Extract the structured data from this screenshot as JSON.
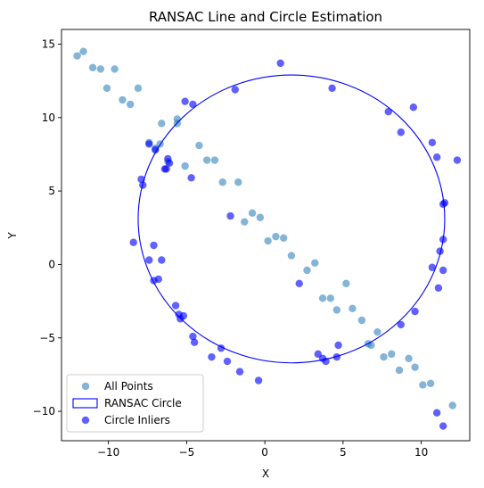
{
  "chart_data": {
    "type": "scatter",
    "title": "RANSAC Line and Circle Estimation",
    "xlabel": "X",
    "ylabel": "Y",
    "xlim": [
      -13.0,
      13.1
    ],
    "ylim": [
      -12.0,
      16.0
    ],
    "xticks": [
      -10,
      -5,
      0,
      5,
      10
    ],
    "yticks": [
      -10,
      -5,
      0,
      5,
      10,
      15
    ],
    "grid": false,
    "legend": {
      "position": "lower-left",
      "entries": [
        "All Points",
        "RANSAC Circle",
        "Circle Inliers"
      ]
    },
    "colors": {
      "all_points": "#1f77b4",
      "circle": "#0000ff",
      "inliers": "#0000ff"
    },
    "circle": {
      "center": [
        1.7,
        3.1
      ],
      "radius": 9.8
    },
    "series": [
      {
        "name": "All Points",
        "points": [
          [
            -12.0,
            14.2
          ],
          [
            -11.6,
            14.5
          ],
          [
            -11.0,
            13.4
          ],
          [
            -10.5,
            13.3
          ],
          [
            -9.6,
            13.3
          ],
          [
            -10.1,
            12.0
          ],
          [
            -9.1,
            11.2
          ],
          [
            -8.6,
            10.9
          ],
          [
            -8.1,
            12.0
          ],
          [
            -6.6,
            9.6
          ],
          [
            -5.6,
            9.6
          ],
          [
            -5.6,
            9.9
          ],
          [
            -6.7,
            8.2
          ],
          [
            -7.4,
            8.3
          ],
          [
            -7.0,
            7.9
          ],
          [
            -6.2,
            7.0
          ],
          [
            -5.1,
            6.7
          ],
          [
            -4.2,
            8.1
          ],
          [
            -3.7,
            7.1
          ],
          [
            -3.2,
            7.1
          ],
          [
            -2.7,
            5.6
          ],
          [
            -1.7,
            5.6
          ],
          [
            -1.3,
            2.9
          ],
          [
            -0.8,
            3.5
          ],
          [
            -0.3,
            3.2
          ],
          [
            0.2,
            1.6
          ],
          [
            0.7,
            1.9
          ],
          [
            1.2,
            1.8
          ],
          [
            1.7,
            0.6
          ],
          [
            2.7,
            -0.4
          ],
          [
            3.2,
            0.1
          ],
          [
            3.7,
            -2.3
          ],
          [
            4.2,
            -2.3
          ],
          [
            4.6,
            -3.1
          ],
          [
            5.2,
            -1.3
          ],
          [
            5.6,
            -3.0
          ],
          [
            6.2,
            -3.8
          ],
          [
            6.6,
            -5.4
          ],
          [
            6.8,
            -5.5
          ],
          [
            7.2,
            -4.6
          ],
          [
            7.6,
            -6.3
          ],
          [
            8.1,
            -6.1
          ],
          [
            8.6,
            -7.2
          ],
          [
            9.2,
            -6.4
          ],
          [
            9.6,
            -7.0
          ],
          [
            10.1,
            -8.2
          ],
          [
            10.6,
            -8.1
          ],
          [
            12.0,
            -9.6
          ]
        ]
      },
      {
        "name": "Circle Inliers",
        "points": [
          [
            1.0,
            13.7
          ],
          [
            4.3,
            12.0
          ],
          [
            -1.9,
            11.9
          ],
          [
            -5.1,
            11.1
          ],
          [
            -4.6,
            10.9
          ],
          [
            7.9,
            10.4
          ],
          [
            9.5,
            10.7
          ],
          [
            8.7,
            9.0
          ],
          [
            -7.4,
            8.2
          ],
          [
            -7.0,
            7.8
          ],
          [
            10.7,
            8.3
          ],
          [
            11.0,
            7.3
          ],
          [
            12.3,
            7.1
          ],
          [
            -6.2,
            7.2
          ],
          [
            -6.1,
            6.9
          ],
          [
            -6.4,
            6.5
          ],
          [
            -6.3,
            6.5
          ],
          [
            -4.7,
            5.9
          ],
          [
            -7.9,
            5.8
          ],
          [
            -7.8,
            5.4
          ],
          [
            11.4,
            4.1
          ],
          [
            11.5,
            4.2
          ],
          [
            -2.2,
            3.3
          ],
          [
            11.4,
            1.7
          ],
          [
            -8.4,
            1.5
          ],
          [
            -7.1,
            1.3
          ],
          [
            11.2,
            0.9
          ],
          [
            -7.4,
            0.3
          ],
          [
            -6.6,
            0.3
          ],
          [
            10.7,
            -0.2
          ],
          [
            11.4,
            -0.4
          ],
          [
            -6.8,
            -1.0
          ],
          [
            -7.1,
            -1.1
          ],
          [
            2.2,
            -1.3
          ],
          [
            11.1,
            -1.6
          ],
          [
            -5.7,
            -2.8
          ],
          [
            -5.5,
            -3.4
          ],
          [
            -5.2,
            -3.5
          ],
          [
            -5.4,
            -3.7
          ],
          [
            9.6,
            -3.2
          ],
          [
            8.7,
            -4.1
          ],
          [
            -4.6,
            -4.9
          ],
          [
            -4.5,
            -5.3
          ],
          [
            4.7,
            -5.5
          ],
          [
            -2.8,
            -5.7
          ],
          [
            -3.4,
            -6.3
          ],
          [
            -2.4,
            -6.6
          ],
          [
            3.4,
            -6.1
          ],
          [
            3.7,
            -6.4
          ],
          [
            3.9,
            -6.6
          ],
          [
            4.6,
            -6.3
          ],
          [
            -1.6,
            -7.3
          ],
          [
            -0.4,
            -7.9
          ],
          [
            11.0,
            -10.1
          ],
          [
            11.4,
            -11.0
          ]
        ]
      }
    ]
  }
}
